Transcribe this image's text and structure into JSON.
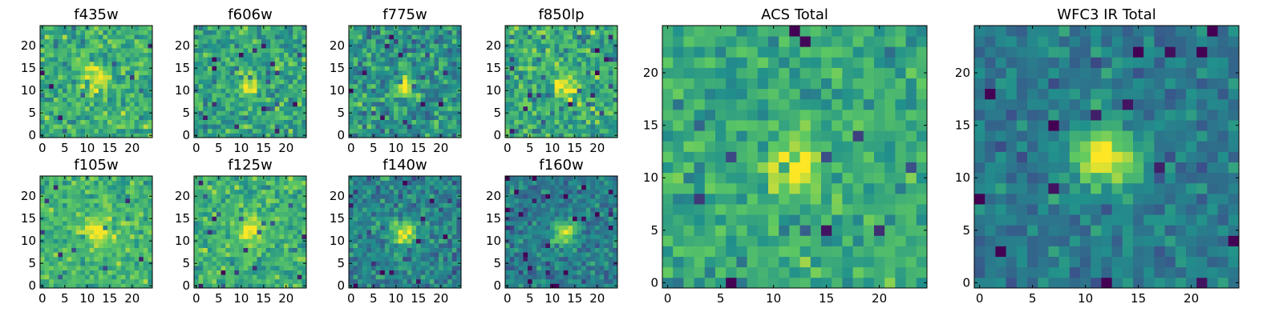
{
  "chart_data": [
    {
      "type": "heatmap",
      "title": "f435w",
      "xticks": [
        0,
        5,
        10,
        15,
        20
      ],
      "yticks": [
        0,
        5,
        10,
        15,
        20
      ],
      "xlim": [
        -0.5,
        24.5
      ],
      "ylim": [
        -0.5,
        24.5
      ],
      "grid_size": [
        25,
        25
      ],
      "center": [
        12,
        13
      ],
      "peak_sigma": 2.2,
      "source_amp": 0.35,
      "bg": 0.62,
      "noise": 0.22,
      "seed": 11
    },
    {
      "type": "heatmap",
      "title": "f606w",
      "xticks": [
        0,
        5,
        10,
        15,
        20
      ],
      "yticks": [
        0,
        5,
        10,
        15,
        20
      ],
      "xlim": [
        -0.5,
        24.5
      ],
      "ylim": [
        -0.5,
        24.5
      ],
      "grid_size": [
        25,
        25
      ],
      "center": [
        12,
        11
      ],
      "peak_sigma": 1.6,
      "source_amp": 0.45,
      "bg": 0.58,
      "noise": 0.22,
      "seed": 23
    },
    {
      "type": "heatmap",
      "title": "f775w",
      "xticks": [
        0,
        5,
        10,
        15,
        20
      ],
      "yticks": [
        0,
        5,
        10,
        15,
        20
      ],
      "xlim": [
        -0.5,
        24.5
      ],
      "ylim": [
        -0.5,
        24.5
      ],
      "grid_size": [
        25,
        25
      ],
      "center": [
        12,
        11
      ],
      "peak_sigma": 1.5,
      "source_amp": 0.5,
      "bg": 0.52,
      "noise": 0.24,
      "seed": 37
    },
    {
      "type": "heatmap",
      "title": "f850lp",
      "xticks": [
        0,
        5,
        10,
        15,
        20
      ],
      "yticks": [
        0,
        5,
        10,
        15,
        20
      ],
      "xlim": [
        -0.5,
        24.5
      ],
      "ylim": [
        -0.5,
        24.5
      ],
      "grid_size": [
        25,
        25
      ],
      "center": [
        13,
        11
      ],
      "peak_sigma": 1.8,
      "source_amp": 0.4,
      "bg": 0.6,
      "noise": 0.24,
      "seed": 41
    },
    {
      "type": "heatmap",
      "title": "f105w",
      "xticks": [
        0,
        5,
        10,
        15,
        20
      ],
      "yticks": [
        0,
        5,
        10,
        15,
        20
      ],
      "xlim": [
        -0.5,
        24.5
      ],
      "ylim": [
        -0.5,
        24.5
      ],
      "grid_size": [
        25,
        25
      ],
      "center": [
        12,
        12
      ],
      "peak_sigma": 2.4,
      "source_amp": 0.3,
      "bg": 0.66,
      "noise": 0.18,
      "seed": 53
    },
    {
      "type": "heatmap",
      "title": "f125w",
      "xticks": [
        0,
        5,
        10,
        15,
        20
      ],
      "yticks": [
        0,
        5,
        10,
        15,
        20
      ],
      "xlim": [
        -0.5,
        24.5
      ],
      "ylim": [
        -0.5,
        24.5
      ],
      "grid_size": [
        25,
        25
      ],
      "center": [
        12,
        12
      ],
      "peak_sigma": 2.6,
      "source_amp": 0.3,
      "bg": 0.64,
      "noise": 0.2,
      "seed": 67
    },
    {
      "type": "heatmap",
      "title": "f140w",
      "xticks": [
        0,
        5,
        10,
        15,
        20
      ],
      "yticks": [
        0,
        5,
        10,
        15,
        20
      ],
      "xlim": [
        -0.5,
        24.5
      ],
      "ylim": [
        -0.5,
        24.5
      ],
      "grid_size": [
        25,
        25
      ],
      "center": [
        12,
        12
      ],
      "peak_sigma": 1.8,
      "source_amp": 0.55,
      "bg": 0.45,
      "noise": 0.2,
      "seed": 79
    },
    {
      "type": "heatmap",
      "title": "f160w",
      "xticks": [
        0,
        5,
        10,
        15,
        20
      ],
      "yticks": [
        0,
        5,
        10,
        15,
        20
      ],
      "xlim": [
        -0.5,
        24.5
      ],
      "ylim": [
        -0.5,
        24.5
      ],
      "grid_size": [
        25,
        25
      ],
      "center": [
        13,
        12
      ],
      "peak_sigma": 1.8,
      "source_amp": 0.6,
      "bg": 0.42,
      "noise": 0.18,
      "seed": 83
    },
    {
      "type": "heatmap",
      "title": "ACS Total",
      "xticks": [
        0,
        5,
        10,
        15,
        20
      ],
      "yticks": [
        0,
        5,
        10,
        15,
        20
      ],
      "xlim": [
        -0.5,
        24.5
      ],
      "ylim": [
        -0.5,
        24.5
      ],
      "grid_size": [
        25,
        25
      ],
      "center": [
        12,
        11
      ],
      "peak_sigma": 1.7,
      "source_amp": 0.45,
      "bg": 0.6,
      "noise": 0.18,
      "seed": 97
    },
    {
      "type": "heatmap",
      "title": "WFC3 IR Total",
      "xticks": [
        0,
        5,
        10,
        15,
        20
      ],
      "yticks": [
        0,
        5,
        10,
        15,
        20
      ],
      "xlim": [
        -0.5,
        24.5
      ],
      "ylim": [
        -0.5,
        24.5
      ],
      "grid_size": [
        25,
        25
      ],
      "center": [
        12,
        12
      ],
      "peak_sigma": 2.0,
      "source_amp": 0.6,
      "bg": 0.42,
      "noise": 0.15,
      "seed": 101
    }
  ],
  "colormap": [
    "#440154",
    "#3b528b",
    "#21918c",
    "#5ec962",
    "#fde725"
  ]
}
